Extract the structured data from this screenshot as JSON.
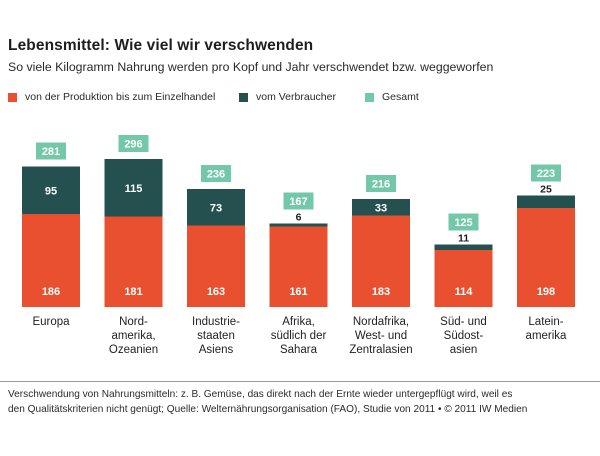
{
  "title": "Lebensmittel: Wie viel wir verschwenden",
  "subtitle": "So viele Kilogramm Nahrung werden pro Kopf und Jahr verschwendet bzw. weggeworfen",
  "legend": [
    {
      "label": "von der Produktion bis zum Einzelhandel",
      "color": "#e8502f"
    },
    {
      "label": "vom Verbraucher",
      "color": "#24514f"
    },
    {
      "label": "Gesamt",
      "color": "#72c8a8"
    }
  ],
  "footer": {
    "line1": "Verschwendung von Nahrungsmitteln: z. B. Gemüse, das direkt nach der Ernte wieder untergepflügt wird, weil es",
    "line2": "den Qualitätskriterien nicht genügt; Quelle: Welternährungsorganisation (FAO), Studie von 2011 • © 2011 IW Medien"
  },
  "chart_data": {
    "type": "bar",
    "stacked": true,
    "categories": [
      [
        "Europa"
      ],
      [
        "Nord-",
        "amerika,",
        "Ozeanien"
      ],
      [
        "Industrie-",
        "staaten",
        "Asiens"
      ],
      [
        "Afrika,",
        "südlich der",
        "Sahara"
      ],
      [
        "Nordafrika,",
        "West- und",
        "Zentralasien"
      ],
      [
        "Süd- und",
        "Südost-",
        "asien"
      ],
      [
        "Latein-",
        "amerika"
      ]
    ],
    "series": [
      {
        "name": "von der Produktion bis zum Einzelhandel",
        "color": "#e8502f",
        "values": [
          186,
          181,
          163,
          161,
          183,
          114,
          198
        ]
      },
      {
        "name": "vom Verbraucher",
        "color": "#24514f",
        "values": [
          95,
          115,
          73,
          6,
          33,
          11,
          25
        ]
      }
    ],
    "totals": {
      "name": "Gesamt",
      "color": "#72c8a8",
      "values": [
        281,
        296,
        236,
        167,
        216,
        125,
        223
      ]
    },
    "ylim": [
      0,
      300
    ]
  }
}
